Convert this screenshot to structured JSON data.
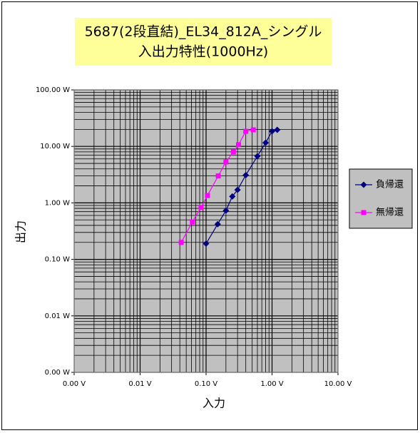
{
  "chart_data": {
    "type": "scatter",
    "title": [
      "5687(2段直結)_EL34_812A_シングル",
      "入出力特性(1000Hz)"
    ],
    "x_label": "入力",
    "y_label": "出力",
    "xscale": "log",
    "yscale": "log",
    "grid": true,
    "minor_grid": true,
    "legend": "right",
    "xlim": [
      0.001,
      10
    ],
    "ylim": [
      0.001,
      100
    ],
    "xticks": [
      {
        "value": 0.001,
        "label": "0.00 V"
      },
      {
        "value": 0.01,
        "label": "0.01 V"
      },
      {
        "value": 0.1,
        "label": "0.10 V"
      },
      {
        "value": 1,
        "label": "1.00 V"
      },
      {
        "value": 10,
        "label": "10.00 V"
      }
    ],
    "yticks": [
      {
        "value": 0.001,
        "label": "0.00 W"
      },
      {
        "value": 0.01,
        "label": "0.01 W"
      },
      {
        "value": 0.1,
        "label": "0.10 W"
      },
      {
        "value": 1,
        "label": "1.00 W"
      },
      {
        "value": 10,
        "label": "10.00 W"
      },
      {
        "value": 100,
        "label": "100.00 W"
      }
    ],
    "series": [
      {
        "name": "負帰還",
        "color": "#000080",
        "marker": "diamond",
        "x": [
          0.1,
          0.15,
          0.2,
          0.25,
          0.3,
          0.4,
          0.6,
          0.8,
          1.0,
          1.2
        ],
        "values": [
          0.19,
          0.42,
          0.73,
          1.3,
          1.7,
          3.1,
          6.7,
          11.6,
          18.5,
          19.6
        ]
      },
      {
        "name": "無帰還",
        "color": "#ff00ff",
        "marker": "square",
        "x": [
          0.042,
          0.062,
          0.084,
          0.105,
          0.153,
          0.2,
          0.26,
          0.31,
          0.4,
          0.52
        ],
        "values": [
          0.2,
          0.46,
          0.83,
          1.35,
          3.0,
          5.3,
          8.0,
          10.7,
          18.5,
          19.6
        ]
      }
    ]
  }
}
